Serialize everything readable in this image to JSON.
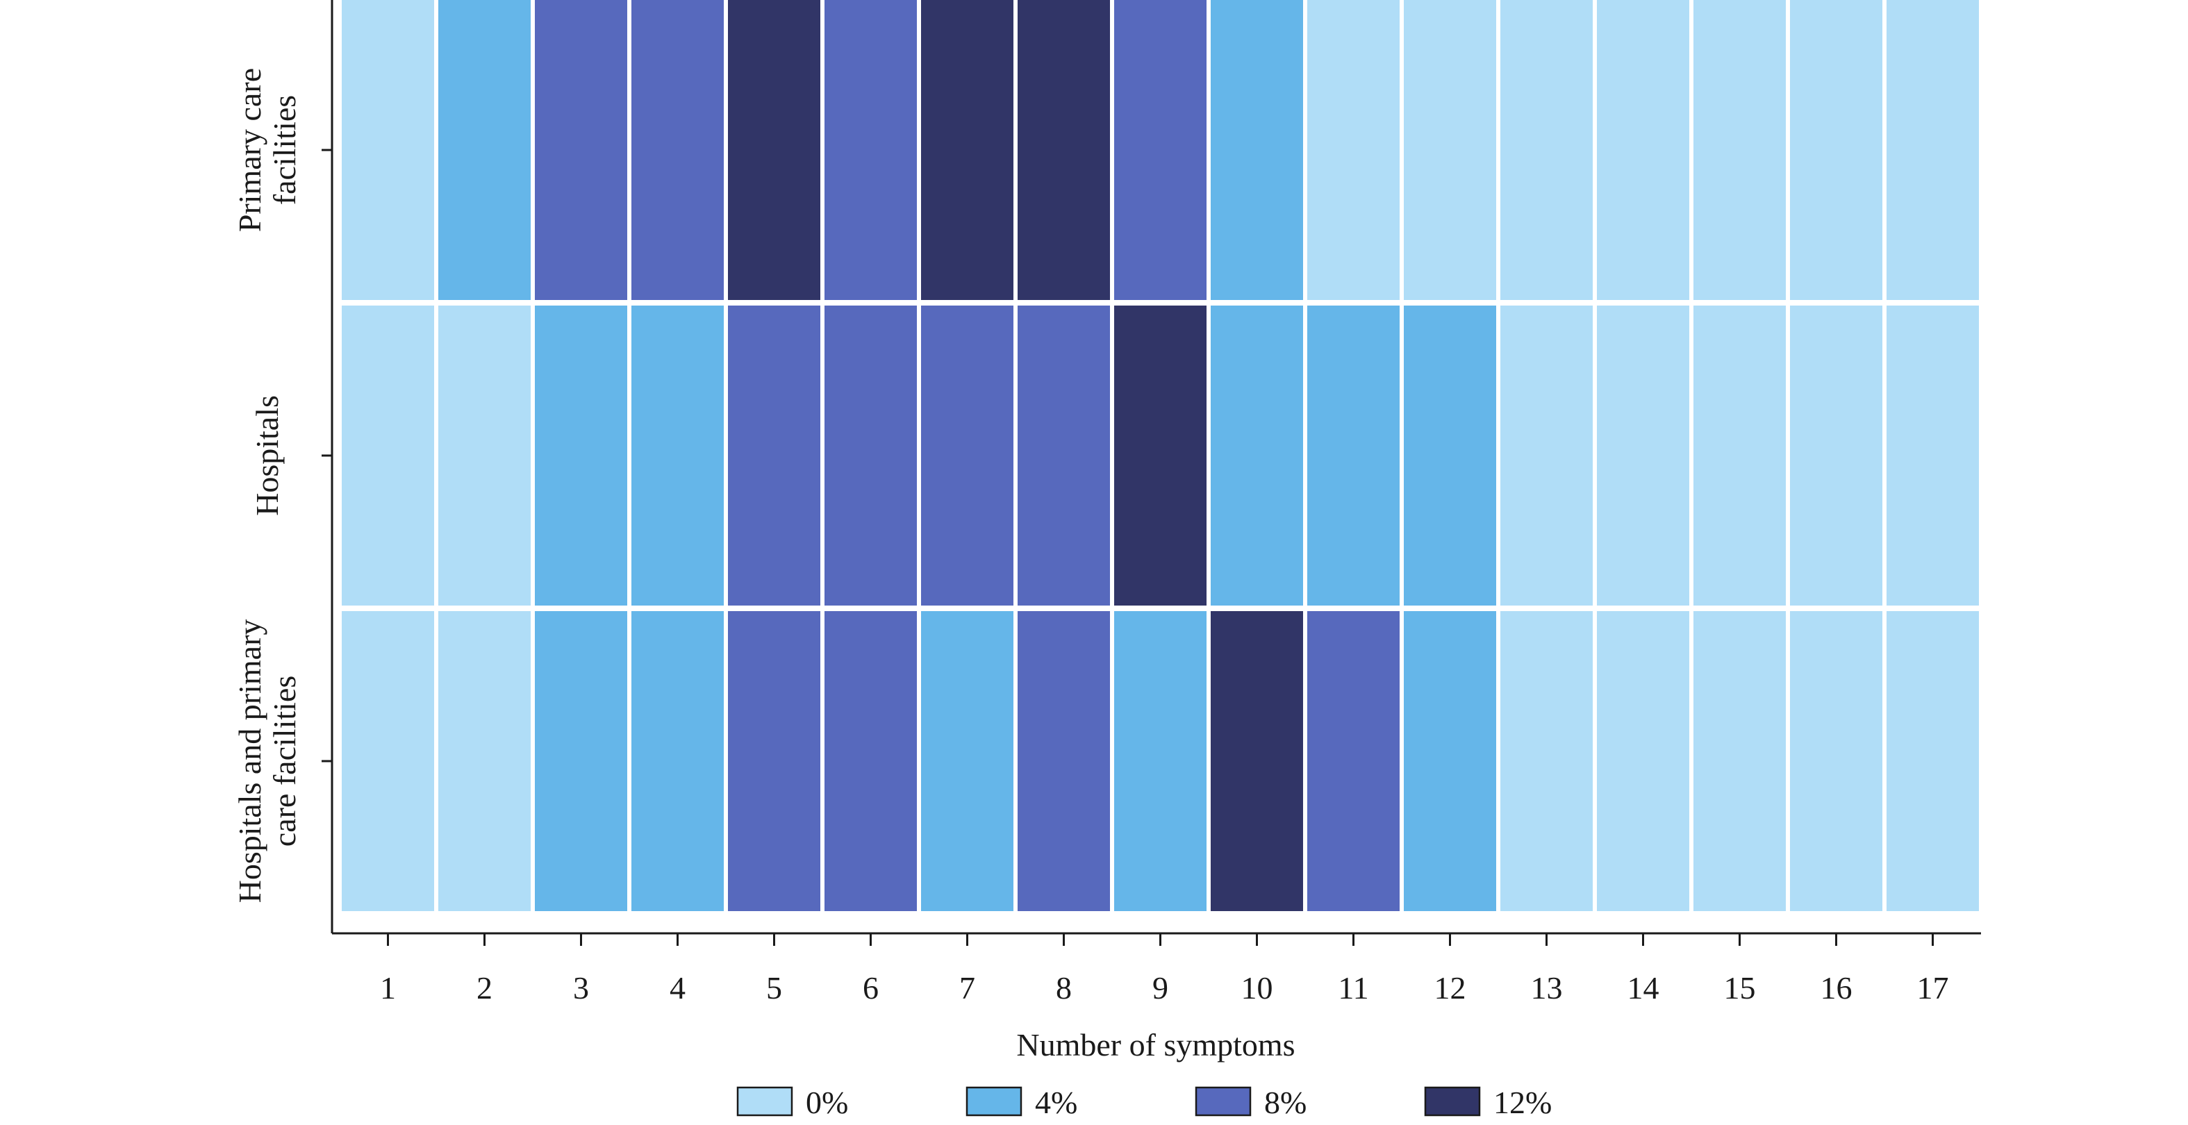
{
  "chart_data": {
    "type": "heatmap",
    "title": "",
    "xlabel": "Number of symptoms",
    "ylabel": "",
    "x_categories": [
      "1",
      "2",
      "3",
      "4",
      "5",
      "6",
      "7",
      "8",
      "9",
      "10",
      "11",
      "12",
      "13",
      "14",
      "15",
      "16",
      "17"
    ],
    "y_categories": [
      [
        "Primary care",
        "facilities"
      ],
      [
        "Hospitals"
      ],
      [
        "Hospitals and primary",
        "care facilities"
      ]
    ],
    "values": [
      [
        0,
        4,
        8,
        8,
        12,
        8,
        12,
        12,
        8,
        4,
        0,
        0,
        0,
        0,
        0,
        0,
        0
      ],
      [
        0,
        0,
        4,
        4,
        8,
        8,
        8,
        8,
        12,
        4,
        4,
        4,
        0,
        0,
        0,
        0,
        0
      ],
      [
        0,
        0,
        4,
        4,
        8,
        8,
        4,
        8,
        4,
        12,
        8,
        4,
        0,
        0,
        0,
        0,
        0
      ]
    ],
    "unit": "%",
    "legend": {
      "position": "bottom",
      "entries": [
        {
          "label": "0%",
          "value": 0,
          "color": "#b0ddf7"
        },
        {
          "label": "4%",
          "value": 4,
          "color": "#65b6e9"
        },
        {
          "label": "8%",
          "value": 8,
          "color": "#5769bd"
        },
        {
          "label": "12%",
          "value": 12,
          "color": "#313567"
        }
      ]
    },
    "grid": false
  }
}
